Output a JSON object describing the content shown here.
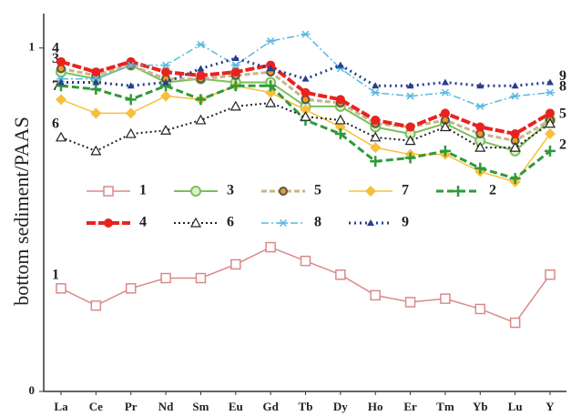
{
  "chart_data": {
    "type": "line",
    "y_label": "bottom sediment/PAAS",
    "categories": [
      "La",
      "Ce",
      "Pr",
      "Nd",
      "Sm",
      "Eu",
      "Gd",
      "Tb",
      "Dy",
      "Ho",
      "Er",
      "Tm",
      "Yb",
      "Lu",
      "Y"
    ],
    "ylim": [
      0,
      1.1
    ],
    "yticks": [
      0,
      1
    ],
    "legend_rows": 2,
    "series": [
      {
        "name": "1",
        "color": "#d98a8a",
        "marker": "square",
        "dash": "none",
        "width": 1.5,
        "label_left": "1",
        "values": [
          0.3,
          0.25,
          0.3,
          0.33,
          0.33,
          0.37,
          0.42,
          0.38,
          0.34,
          0.28,
          0.26,
          0.27,
          0.24,
          0.2,
          0.34
        ]
      },
      {
        "name": "3",
        "color": "#7cbf5a",
        "marker": "circle",
        "dash": "none",
        "width": 2,
        "label_left": "3",
        "values": [
          0.93,
          0.91,
          0.95,
          0.9,
          0.91,
          0.9,
          0.9,
          0.83,
          0.83,
          0.77,
          0.75,
          0.78,
          0.73,
          0.7,
          0.79
        ]
      },
      {
        "name": "5",
        "color": "#c8b48a",
        "marker": "dotcircle",
        "dash": "6 3",
        "width": 3,
        "label_right": "5",
        "values": [
          0.94,
          0.92,
          0.95,
          0.91,
          0.91,
          0.92,
          0.93,
          0.85,
          0.84,
          0.78,
          0.77,
          0.79,
          0.75,
          0.73,
          0.79
        ]
      },
      {
        "name": "7",
        "color": "#f7c03a",
        "marker": "diamond",
        "dash": "none",
        "width": 1.5,
        "label_left": "7",
        "values": [
          0.85,
          0.81,
          0.81,
          0.86,
          0.85,
          0.89,
          0.87,
          0.82,
          0.77,
          0.71,
          0.69,
          0.69,
          0.64,
          0.61,
          0.75
        ]
      },
      {
        "name": "2",
        "color": "#2e9a3a",
        "marker": "plus",
        "dash": "8 4",
        "width": 3,
        "label_right": "2",
        "values": [
          0.89,
          0.88,
          0.85,
          0.89,
          0.85,
          0.89,
          0.89,
          0.79,
          0.75,
          0.67,
          0.68,
          0.7,
          0.65,
          0.62,
          0.7
        ]
      },
      {
        "name": "4",
        "color": "#e8231e",
        "marker": "dot",
        "dash": "10 3",
        "width": 4,
        "label_left": "4",
        "values": [
          0.96,
          0.93,
          0.96,
          0.93,
          0.92,
          0.93,
          0.95,
          0.87,
          0.85,
          0.79,
          0.77,
          0.81,
          0.77,
          0.75,
          0.81
        ]
      },
      {
        "name": "6",
        "color": "#222222",
        "marker": "triangle",
        "dash": "2 3",
        "width": 2,
        "label_left": "6",
        "values": [
          0.74,
          0.7,
          0.75,
          0.76,
          0.79,
          0.83,
          0.84,
          0.8,
          0.79,
          0.74,
          0.73,
          0.77,
          0.71,
          0.71,
          0.78
        ]
      },
      {
        "name": "8",
        "color": "#5bb8e0",
        "marker": "asterisk",
        "dash": "8 3 2 3",
        "width": 1.5,
        "label_right": "8",
        "values": [
          0.91,
          0.91,
          0.95,
          0.95,
          1.01,
          0.95,
          1.02,
          1.04,
          0.94,
          0.87,
          0.86,
          0.87,
          0.83,
          0.86,
          0.87
        ]
      },
      {
        "name": "9",
        "color": "#2a3d8f",
        "marker": "ftriangle",
        "dash": "2 4",
        "width": 3,
        "label_right": "9",
        "values": [
          0.9,
          0.9,
          0.89,
          0.9,
          0.94,
          0.97,
          0.94,
          0.91,
          0.95,
          0.89,
          0.89,
          0.9,
          0.89,
          0.89,
          0.9
        ]
      }
    ]
  }
}
